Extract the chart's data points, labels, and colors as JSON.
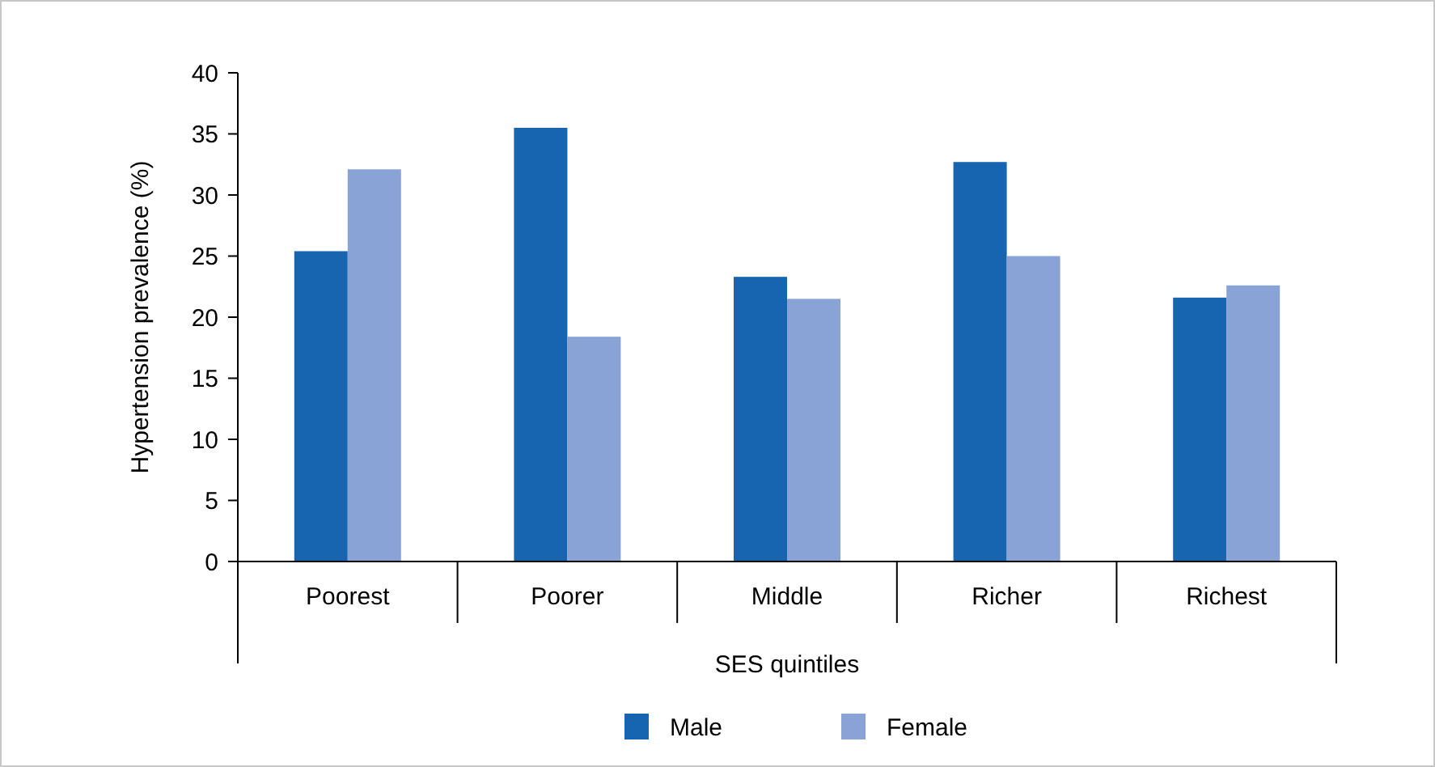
{
  "chart_data": {
    "type": "bar",
    "ylabel": "Hypertension prevalence (%)",
    "xlabel": "SES quintiles",
    "categories": [
      "Poorest",
      "Poorer",
      "Middle",
      "Richer",
      "Richest"
    ],
    "series": [
      {
        "name": "Male",
        "color": "#1764b0",
        "values": [
          25.4,
          35.5,
          23.3,
          32.7,
          21.6
        ]
      },
      {
        "name": "Female",
        "color": "#8aa3d6",
        "values": [
          32.1,
          18.4,
          21.5,
          25.0,
          22.6
        ]
      }
    ],
    "ylim": [
      0,
      40
    ],
    "yticks": [
      0,
      5,
      10,
      15,
      20,
      25,
      30,
      35,
      40
    ],
    "grid": false,
    "legend": "bottom"
  }
}
